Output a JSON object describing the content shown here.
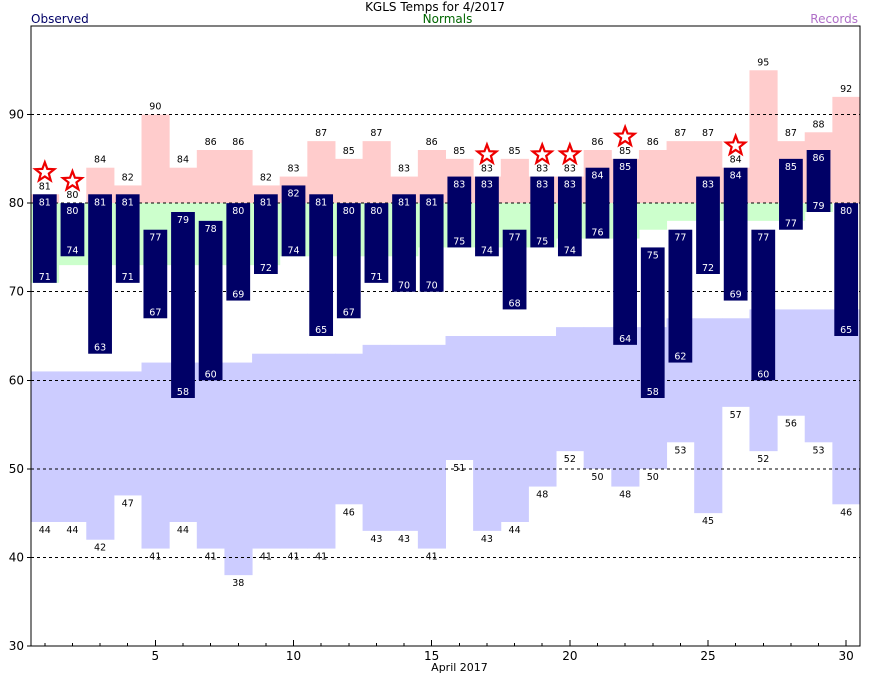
{
  "header": {
    "title": "KGLS Temps for 4/2017",
    "observed_label": "Observed",
    "normals_label": "Normals",
    "records_label": "Records"
  },
  "colors": {
    "observed_bar": "#000066",
    "normal_band": "#ccffcc",
    "record_high_band": "#ffcccc",
    "record_low_band": "#ccccff",
    "record_star": "#ee0000",
    "observed_text": "#000066",
    "normals_text": "#006600",
    "records_text": "#b070c8"
  },
  "chart_data": {
    "type": "bar",
    "title": "KGLS Temps for 4/2017",
    "xlabel": "April 2017",
    "ylabel": "",
    "ylim": [
      30,
      100
    ],
    "xlim": [
      0.5,
      30.5
    ],
    "yticks": [
      30,
      40,
      50,
      60,
      70,
      80,
      90
    ],
    "xticks": [
      5,
      10,
      15,
      20,
      25,
      30
    ],
    "grid": true,
    "days": [
      1,
      2,
      3,
      4,
      5,
      6,
      7,
      8,
      9,
      10,
      11,
      12,
      13,
      14,
      15,
      16,
      17,
      18,
      19,
      20,
      21,
      22,
      23,
      24,
      25,
      26,
      27,
      28,
      29,
      30
    ],
    "series": [
      {
        "name": "Observed",
        "kind": "high",
        "values": [
          81,
          80,
          81,
          81,
          77,
          79,
          78,
          80,
          81,
          82,
          81,
          80,
          80,
          81,
          81,
          83,
          83,
          77,
          83,
          83,
          84,
          85,
          75,
          77,
          83,
          84,
          77,
          85,
          86,
          80
        ]
      },
      {
        "name": "Observed",
        "kind": "low",
        "values": [
          71,
          74,
          63,
          71,
          67,
          58,
          60,
          69,
          72,
          74,
          65,
          67,
          71,
          70,
          70,
          75,
          74,
          68,
          75,
          74,
          76,
          64,
          58,
          62,
          72,
          69,
          60,
          77,
          79,
          65
        ]
      },
      {
        "name": "Normals",
        "kind": "high",
        "values": [
          80,
          80,
          80,
          80,
          80,
          80,
          80,
          80,
          80,
          80,
          80,
          80,
          80,
          80,
          80,
          80,
          80,
          80,
          80,
          80,
          80,
          80,
          80,
          80,
          80,
          80,
          80,
          80,
          80,
          80
        ]
      },
      {
        "name": "Normals",
        "kind": "low",
        "values": [
          71,
          73,
          73,
          73,
          73,
          73,
          73,
          73,
          73,
          74,
          74,
          74,
          74,
          74,
          75,
          75,
          75,
          75,
          75,
          76,
          76,
          76,
          77,
          78,
          78,
          78,
          78,
          78,
          79,
          80
        ]
      },
      {
        "name": "Records",
        "kind": "high",
        "values": [
          81,
          80,
          84,
          82,
          90,
          84,
          86,
          86,
          82,
          83,
          87,
          85,
          87,
          83,
          86,
          85,
          83,
          85,
          83,
          83,
          86,
          85,
          86,
          87,
          87,
          84,
          95,
          87,
          88,
          92
        ]
      },
      {
        "name": "Records",
        "kind": "low",
        "values": [
          44,
          44,
          42,
          47,
          41,
          44,
          41,
          38,
          41,
          41,
          41,
          46,
          43,
          43,
          41,
          51,
          43,
          44,
          48,
          52,
          50,
          48,
          50,
          53,
          45,
          57,
          52,
          56,
          53,
          46
        ]
      },
      {
        "name": "Normals",
        "kind": "low_band_top",
        "values": [
          61,
          61,
          61,
          61,
          62,
          62,
          62,
          62,
          63,
          63,
          63,
          63,
          64,
          64,
          64,
          65,
          65,
          65,
          65,
          66,
          66,
          66,
          66,
          67,
          67,
          67,
          68,
          68,
          68,
          68
        ]
      }
    ],
    "record_stars": [
      1,
      2,
      17,
      19,
      20,
      22,
      26
    ]
  }
}
